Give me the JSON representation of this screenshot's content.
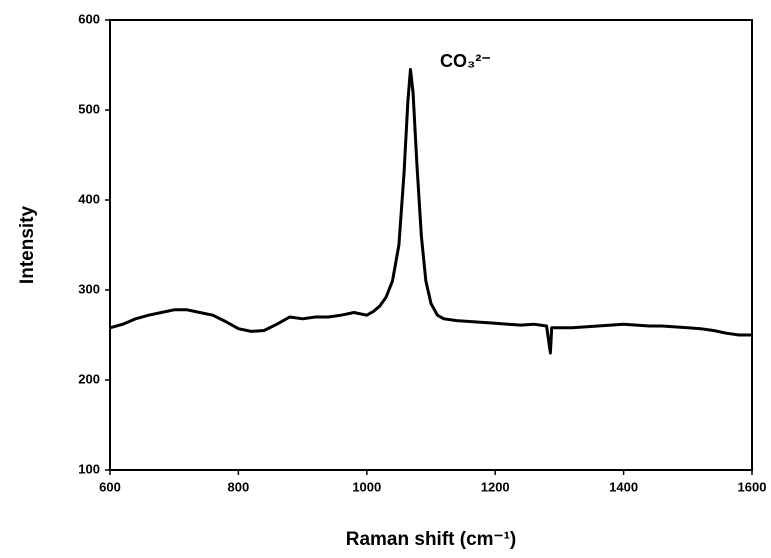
{
  "chart_data": {
    "type": "line",
    "x_label": "Raman shift (cm⁻¹)",
    "y_label": "Intensity",
    "annotation": "CO₃²⁻",
    "x": [
      600,
      620,
      640,
      660,
      680,
      700,
      720,
      740,
      760,
      780,
      800,
      820,
      840,
      860,
      880,
      900,
      920,
      940,
      960,
      980,
      1000,
      1010,
      1020,
      1030,
      1040,
      1050,
      1058,
      1064,
      1068,
      1072,
      1078,
      1085,
      1092,
      1100,
      1110,
      1120,
      1140,
      1160,
      1180,
      1200,
      1220,
      1240,
      1260,
      1280,
      1286,
      1288,
      1300,
      1320,
      1340,
      1360,
      1380,
      1400,
      1420,
      1440,
      1460,
      1480,
      1500,
      1520,
      1540,
      1560,
      1580,
      1600
    ],
    "series": [
      {
        "color": "#000000",
        "values": [
          258,
          262,
          268,
          272,
          275,
          278,
          278,
          275,
          272,
          265,
          257,
          254,
          255,
          262,
          270,
          268,
          270,
          270,
          272,
          275,
          272,
          276,
          282,
          292,
          310,
          350,
          430,
          510,
          545,
          520,
          440,
          360,
          310,
          285,
          272,
          268,
          266,
          265,
          264,
          263,
          262,
          261,
          262,
          260,
          230,
          258,
          258,
          258,
          259,
          260,
          261,
          262,
          261,
          260,
          260,
          259,
          258,
          257,
          255,
          252,
          250,
          250
        ]
      }
    ],
    "xlim": [
      600,
      1600
    ],
    "xticks": [
      600,
      800,
      1000,
      1200,
      1400,
      1600
    ],
    "ylim": [
      100,
      600
    ],
    "yticks": [
      100,
      200,
      300,
      400,
      500,
      600
    ]
  }
}
